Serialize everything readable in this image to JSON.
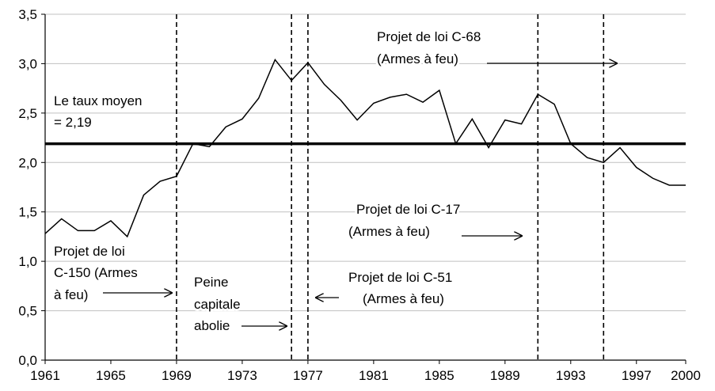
{
  "chart_data": {
    "type": "line",
    "x": [
      1961,
      1962,
      1963,
      1964,
      1965,
      1966,
      1967,
      1968,
      1969,
      1970,
      1971,
      1972,
      1973,
      1974,
      1975,
      1976,
      1977,
      1978,
      1979,
      1980,
      1981,
      1982,
      1983,
      1984,
      1985,
      1986,
      1987,
      1988,
      1989,
      1990,
      1991,
      1992,
      1993,
      1994,
      1995,
      1996,
      1997,
      1998,
      1999,
      2000
    ],
    "series": [
      {
        "color": "#000000",
        "values": [
          1.28,
          1.43,
          1.31,
          1.31,
          1.41,
          1.25,
          1.67,
          1.81,
          1.86,
          2.19,
          2.16,
          2.36,
          2.44,
          2.65,
          3.04,
          2.83,
          3.01,
          2.79,
          2.63,
          2.43,
          2.6,
          2.66,
          2.69,
          2.61,
          2.73,
          2.19,
          2.44,
          2.15,
          2.43,
          2.39,
          2.69,
          2.59,
          2.19,
          2.05,
          2.0,
          2.15,
          1.95,
          1.84,
          1.77,
          1.77
        ]
      }
    ],
    "xlim": [
      1961,
      2000
    ],
    "xticks": [
      1961,
      1965,
      1969,
      1973,
      1977,
      1981,
      1985,
      1989,
      1993,
      1997,
      2000
    ],
    "ylim": [
      0,
      3.5
    ],
    "yticks": [
      {
        "value": 0,
        "label": "0,0"
      },
      {
        "value": 0.5,
        "label": "0,5"
      },
      {
        "value": 1,
        "label": "1,0"
      },
      {
        "value": 1.5,
        "label": "1,5"
      },
      {
        "value": 2,
        "label": "2,0"
      },
      {
        "value": 2.5,
        "label": "2,5"
      },
      {
        "value": 3,
        "label": "3,0"
      },
      {
        "value": 3.5,
        "label": "3,5"
      }
    ],
    "grid": true,
    "mean": {
      "value": 2.19,
      "label": [
        "Le taux moyen",
        "= 2,19"
      ]
    },
    "events": [
      1969,
      1976,
      1977,
      1991,
      1995
    ],
    "annotations": [
      [
        "Projet de loi C-68",
        "(Armes à feu)"
      ],
      [
        "Projet de loi C-17",
        "(Armes à feu)"
      ],
      [
        "Projet de loi",
        "C-150 (Armes",
        "à feu)"
      ],
      [
        "Peine",
        "capitale",
        "abolie"
      ],
      [
        "Projet de loi C-51",
        "(Armes à feu)"
      ]
    ]
  }
}
